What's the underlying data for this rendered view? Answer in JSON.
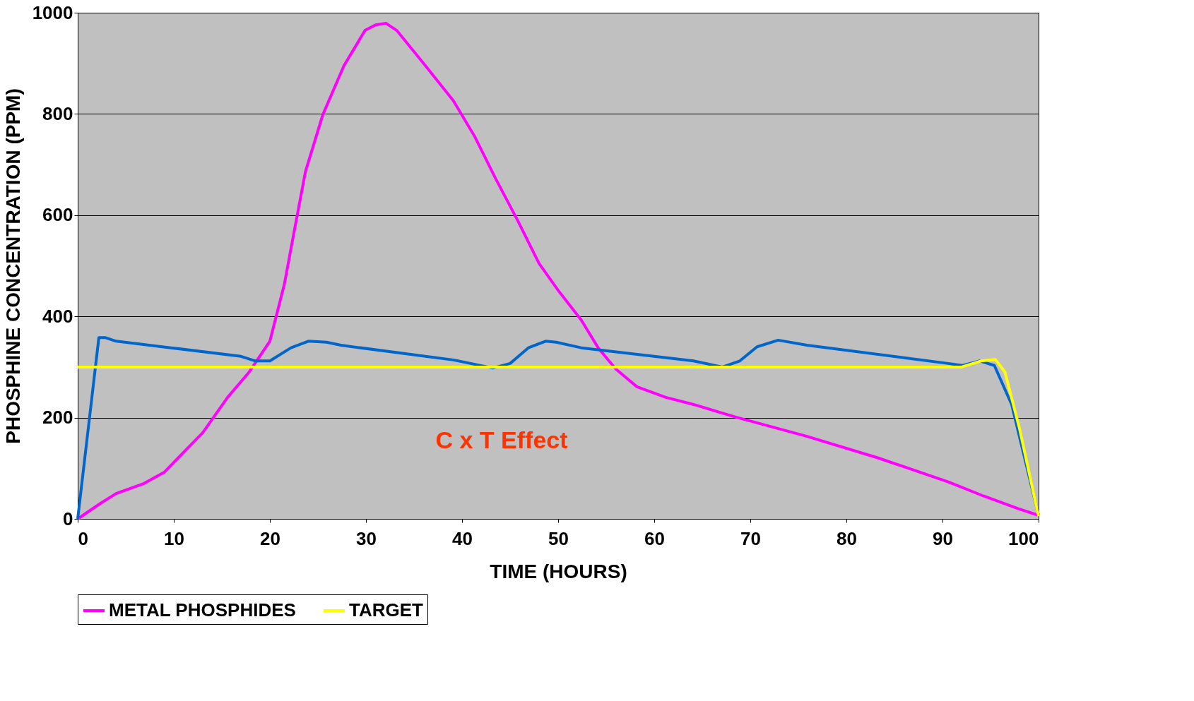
{
  "chart_data": {
    "type": "line",
    "xlabel": "TIME (HOURS)",
    "ylabel": "PHOSPHINE CONCENTRATION (PPM)",
    "xlim": [
      0,
      100
    ],
    "xticks": [
      0,
      10,
      20,
      30,
      40,
      50,
      60,
      70,
      80,
      90,
      100
    ],
    "ylim": [
      0,
      1000
    ],
    "yticks": [
      0,
      200,
      400,
      600,
      800,
      1000
    ],
    "grid": "y",
    "legend": "bottom",
    "marker": "none",
    "line_style": "solid",
    "annotations": [
      "C x T Effect"
    ],
    "series": [
      {
        "name": "METAL PHOSPHIDES",
        "color": "#ff00ff",
        "x": [
          0,
          2.4,
          4,
          6.9,
          9,
          11.2,
          13,
          15.6,
          17.8,
          20,
          21.5,
          22.6,
          23.7,
          25.5,
          27.7,
          29.9,
          31,
          32.1,
          33.2,
          36.2,
          39.1,
          41.3,
          43.5,
          45.8,
          48,
          50.1,
          52.4,
          54.2,
          56,
          58.2,
          61.2,
          64.1,
          68.5,
          75.9,
          83.2,
          90.6,
          94.3,
          97.9,
          100
        ],
        "values": [
          0,
          31,
          50,
          70,
          92,
          135,
          170,
          240,
          289,
          351,
          463,
          575,
          686,
          798,
          895,
          965,
          976,
          979,
          965,
          895,
          826,
          756,
          672,
          589,
          505,
          449,
          393,
          337,
          296,
          261,
          240,
          226,
          201,
          163,
          121,
          73,
          45,
          20,
          7
        ]
      },
      {
        "color": "#0066cc",
        "x": [
          0,
          2.2,
          2.9,
          4,
          9.7,
          17,
          18.5,
          20,
          22.2,
          24,
          25.9,
          27.4,
          39.1,
          43.2,
          45,
          46.9,
          48.7,
          49.8,
          52.4,
          64.1,
          67.1,
          68.9,
          70.7,
          72.9,
          75.9,
          90.6,
          92.1,
          93.9,
          95.4,
          97.2,
          100
        ],
        "values": [
          0,
          358,
          358,
          351,
          338,
          321,
          312,
          312,
          338,
          351,
          349,
          343,
          314,
          298,
          307,
          338,
          351,
          349,
          338,
          312,
          300,
          312,
          340,
          353,
          343,
          307,
          303,
          312,
          303,
          226,
          7
        ]
      },
      {
        "name": "TARGET",
        "color": "#ffff00",
        "x": [
          0,
          92,
          94,
          95.5,
          96.5,
          98,
          100
        ],
        "values": [
          300,
          300,
          312,
          315,
          290,
          180,
          5
        ]
      }
    ]
  }
}
